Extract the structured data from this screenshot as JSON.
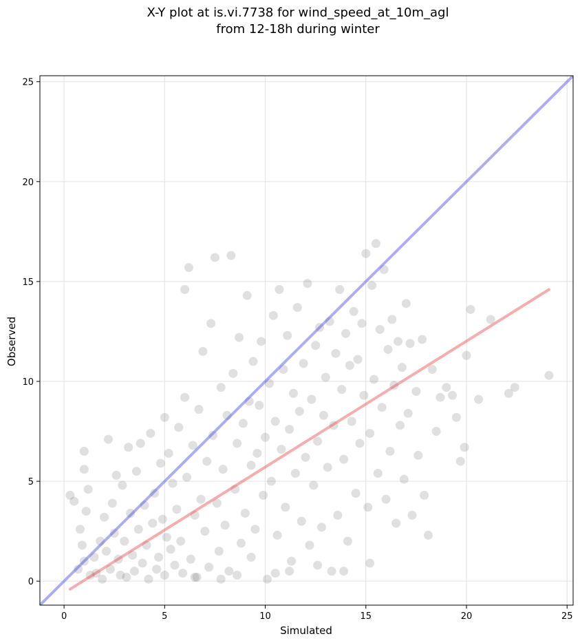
{
  "chart_data": {
    "type": "scatter",
    "title_lines": [
      "X-Y plot at is.vi.7738 for wind_speed_at_10m_agl",
      "from 12-18h during winter"
    ],
    "xlabel": "Simulated",
    "ylabel": "Observed",
    "xlim": [
      -1.2,
      25.3
    ],
    "ylim": [
      -1.2,
      25.3
    ],
    "xticks": [
      0,
      5,
      10,
      15,
      20,
      25
    ],
    "yticks": [
      0,
      5,
      10,
      15,
      20,
      25
    ],
    "grid": true,
    "colors": {
      "points": "#555555",
      "identity_line": "#4a4ae8",
      "fit_line": "#e84a4a"
    },
    "lines": [
      {
        "role": "identity",
        "x": [
          -1.2,
          25.3
        ],
        "y": [
          -1.2,
          25.3
        ]
      },
      {
        "role": "fit",
        "x": [
          0.3,
          24.1
        ],
        "y": [
          -0.4,
          14.6
        ]
      }
    ],
    "points": [
      [
        0.3,
        4.3
      ],
      [
        0.5,
        4.0
      ],
      [
        0.8,
        2.6
      ],
      [
        0.9,
        1.8
      ],
      [
        1.0,
        6.5
      ],
      [
        1.0,
        5.6
      ],
      [
        1.1,
        3.5
      ],
      [
        1.2,
        4.6
      ],
      [
        0.7,
        0.6
      ],
      [
        1.0,
        1.0
      ],
      [
        1.3,
        0.3
      ],
      [
        1.5,
        1.2
      ],
      [
        1.6,
        0.4
      ],
      [
        1.8,
        2.0
      ],
      [
        1.9,
        0.1
      ],
      [
        2.0,
        3.2
      ],
      [
        2.1,
        1.5
      ],
      [
        2.2,
        7.1
      ],
      [
        2.3,
        0.6
      ],
      [
        2.4,
        3.9
      ],
      [
        2.5,
        2.4
      ],
      [
        2.6,
        5.3
      ],
      [
        2.7,
        1.1
      ],
      [
        2.8,
        0.3
      ],
      [
        2.9,
        4.8
      ],
      [
        3.0,
        2.0
      ],
      [
        3.1,
        0.2
      ],
      [
        3.2,
        6.7
      ],
      [
        3.3,
        3.4
      ],
      [
        3.4,
        1.3
      ],
      [
        3.5,
        0.5
      ],
      [
        3.6,
        5.5
      ],
      [
        3.7,
        2.6
      ],
      [
        3.8,
        6.9
      ],
      [
        3.9,
        0.9
      ],
      [
        4.0,
        3.8
      ],
      [
        4.1,
        1.8
      ],
      [
        4.2,
        0.1
      ],
      [
        4.3,
        7.4
      ],
      [
        4.4,
        2.9
      ],
      [
        4.5,
        4.4
      ],
      [
        4.6,
        0.6
      ],
      [
        4.7,
        1.2
      ],
      [
        4.8,
        5.9
      ],
      [
        4.9,
        3.1
      ],
      [
        5.0,
        8.2
      ],
      [
        5.0,
        0.3
      ],
      [
        5.1,
        2.2
      ],
      [
        5.2,
        6.4
      ],
      [
        5.3,
        1.6
      ],
      [
        5.4,
        4.9
      ],
      [
        5.5,
        0.8
      ],
      [
        5.6,
        3.6
      ],
      [
        5.7,
        7.7
      ],
      [
        5.8,
        2.0
      ],
      [
        5.9,
        0.4
      ],
      [
        6.0,
        9.2
      ],
      [
        6.0,
        14.6
      ],
      [
        6.1,
        5.2
      ],
      [
        6.2,
        15.7
      ],
      [
        6.3,
        1.1
      ],
      [
        6.4,
        6.8
      ],
      [
        6.5,
        3.3
      ],
      [
        6.6,
        0.2
      ],
      [
        6.7,
        8.6
      ],
      [
        6.8,
        4.1
      ],
      [
        6.9,
        11.5
      ],
      [
        7.0,
        2.5
      ],
      [
        7.1,
        6.0
      ],
      [
        7.2,
        0.7
      ],
      [
        7.3,
        12.9
      ],
      [
        7.4,
        7.3
      ],
      [
        7.5,
        16.2
      ],
      [
        7.6,
        3.9
      ],
      [
        7.7,
        1.5
      ],
      [
        7.8,
        9.7
      ],
      [
        7.9,
        5.6
      ],
      [
        8.0,
        2.8
      ],
      [
        8.1,
        8.3
      ],
      [
        8.2,
        0.5
      ],
      [
        8.3,
        16.3
      ],
      [
        8.4,
        10.4
      ],
      [
        8.5,
        4.6
      ],
      [
        8.6,
        6.9
      ],
      [
        8.7,
        12.2
      ],
      [
        8.8,
        1.9
      ],
      [
        8.9,
        7.9
      ],
      [
        9.0,
        3.4
      ],
      [
        9.1,
        14.3
      ],
      [
        9.2,
        9.0
      ],
      [
        9.3,
        5.8
      ],
      [
        9.4,
        11.0
      ],
      [
        9.5,
        2.6
      ],
      [
        9.6,
        6.4
      ],
      [
        9.7,
        8.8
      ],
      [
        9.8,
        12.0
      ],
      [
        9.9,
        4.3
      ],
      [
        10.0,
        7.2
      ],
      [
        10.1,
        0.1
      ],
      [
        10.2,
        9.9
      ],
      [
        10.3,
        5.0
      ],
      [
        10.4,
        13.3
      ],
      [
        10.5,
        8.0
      ],
      [
        10.6,
        2.3
      ],
      [
        10.7,
        14.6
      ],
      [
        10.8,
        6.6
      ],
      [
        10.9,
        10.6
      ],
      [
        11.0,
        3.7
      ],
      [
        11.1,
        12.3
      ],
      [
        11.2,
        7.6
      ],
      [
        11.3,
        1.0
      ],
      [
        11.4,
        9.4
      ],
      [
        11.5,
        5.4
      ],
      [
        11.6,
        13.7
      ],
      [
        11.7,
        8.5
      ],
      [
        11.8,
        3.0
      ],
      [
        11.9,
        10.9
      ],
      [
        12.0,
        6.2
      ],
      [
        12.1,
        14.9
      ],
      [
        12.2,
        1.8
      ],
      [
        12.3,
        9.1
      ],
      [
        12.4,
        4.8
      ],
      [
        12.5,
        11.8
      ],
      [
        12.6,
        7.0
      ],
      [
        12.7,
        12.7
      ],
      [
        12.8,
        2.7
      ],
      [
        12.9,
        8.3
      ],
      [
        13.0,
        10.2
      ],
      [
        13.1,
        5.7
      ],
      [
        13.2,
        13.0
      ],
      [
        13.3,
        0.5
      ],
      [
        13.4,
        7.8
      ],
      [
        13.5,
        11.4
      ],
      [
        13.6,
        3.3
      ],
      [
        13.7,
        14.6
      ],
      [
        13.8,
        9.6
      ],
      [
        13.9,
        6.1
      ],
      [
        14.0,
        12.4
      ],
      [
        14.1,
        2.0
      ],
      [
        14.2,
        10.8
      ],
      [
        14.3,
        8.0
      ],
      [
        14.4,
        13.5
      ],
      [
        14.5,
        4.4
      ],
      [
        14.6,
        11.1
      ],
      [
        14.7,
        6.9
      ],
      [
        14.8,
        12.9
      ],
      [
        14.9,
        9.3
      ],
      [
        15.0,
        16.4
      ],
      [
        15.1,
        3.7
      ],
      [
        15.2,
        7.4
      ],
      [
        15.3,
        14.8
      ],
      [
        15.4,
        10.1
      ],
      [
        15.5,
        16.9
      ],
      [
        15.6,
        5.4
      ],
      [
        15.7,
        12.6
      ],
      [
        15.8,
        8.7
      ],
      [
        15.9,
        15.6
      ],
      [
        16.0,
        4.1
      ],
      [
        16.1,
        11.6
      ],
      [
        16.2,
        6.5
      ],
      [
        16.3,
        13.1
      ],
      [
        16.4,
        9.8
      ],
      [
        16.5,
        2.9
      ],
      [
        16.6,
        12.0
      ],
      [
        16.7,
        7.8
      ],
      [
        16.8,
        10.7
      ],
      [
        16.9,
        5.1
      ],
      [
        17.0,
        13.9
      ],
      [
        17.1,
        8.4
      ],
      [
        17.2,
        11.9
      ],
      [
        17.3,
        3.3
      ],
      [
        17.5,
        9.5
      ],
      [
        17.6,
        6.3
      ],
      [
        17.8,
        12.1
      ],
      [
        17.9,
        4.3
      ],
      [
        18.1,
        2.3
      ],
      [
        18.3,
        10.6
      ],
      [
        18.5,
        7.5
      ],
      [
        18.7,
        9.2
      ],
      [
        19.0,
        9.7
      ],
      [
        19.3,
        9.3
      ],
      [
        19.5,
        8.2
      ],
      [
        19.7,
        6.0
      ],
      [
        19.9,
        6.7
      ],
      [
        20.0,
        11.3
      ],
      [
        20.2,
        13.6
      ],
      [
        20.6,
        9.1
      ],
      [
        21.2,
        13.1
      ],
      [
        22.1,
        9.4
      ],
      [
        22.4,
        9.7
      ],
      [
        24.1,
        10.3
      ],
      [
        15.2,
        0.9
      ],
      [
        13.9,
        0.5
      ],
      [
        12.6,
        0.8
      ],
      [
        11.2,
        0.5
      ],
      [
        10.5,
        0.4
      ],
      [
        9.3,
        1.2
      ],
      [
        8.6,
        0.3
      ],
      [
        7.8,
        0.1
      ],
      [
        6.5,
        0.2
      ]
    ]
  }
}
